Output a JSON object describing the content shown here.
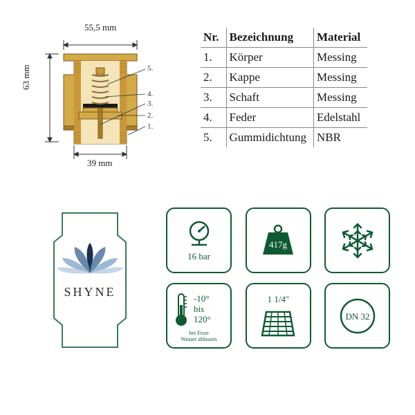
{
  "diagram": {
    "dim_top": "55,5 mm",
    "dim_left": "63 mm",
    "dim_bottom": "39 mm",
    "callouts": [
      "5.",
      "4.",
      "3.",
      "2.",
      "1."
    ],
    "colors": {
      "brass_light": "#e8c778",
      "brass_mid": "#d4a94a",
      "brass_dark": "#a87c28",
      "inner_light": "#f4e4b8",
      "spring": "#8a7040",
      "rubber": "#1a1a1a"
    }
  },
  "table": {
    "headers": [
      "Nr.",
      "Bezeichnung",
      "Material"
    ],
    "rows": [
      [
        "1.",
        "Körper",
        "Messing"
      ],
      [
        "2.",
        "Kappe",
        "Messing"
      ],
      [
        "3.",
        "Schaft",
        "Messing"
      ],
      [
        "4.",
        "Feder",
        "Edelstahl"
      ],
      [
        "5.",
        "Gummidichtung",
        "NBR"
      ]
    ]
  },
  "logo": {
    "text": "SHYNE",
    "outline_color": "#3a7a5a",
    "petal_dark": "#1a2f4a",
    "petal_light": "#9bb8d4"
  },
  "icons": {
    "color": "#0f5a32",
    "pressure": {
      "label": "16 bar"
    },
    "weight": {
      "label": "417g"
    },
    "frost": {},
    "temp": {
      "line1": "-10°",
      "line2": "bis",
      "line3": "120°",
      "note1": "bei Frost",
      "note2": "Wasser ablassen"
    },
    "thread": {
      "label": "1 1/4''"
    },
    "dn": {
      "label": "DN 32"
    }
  }
}
